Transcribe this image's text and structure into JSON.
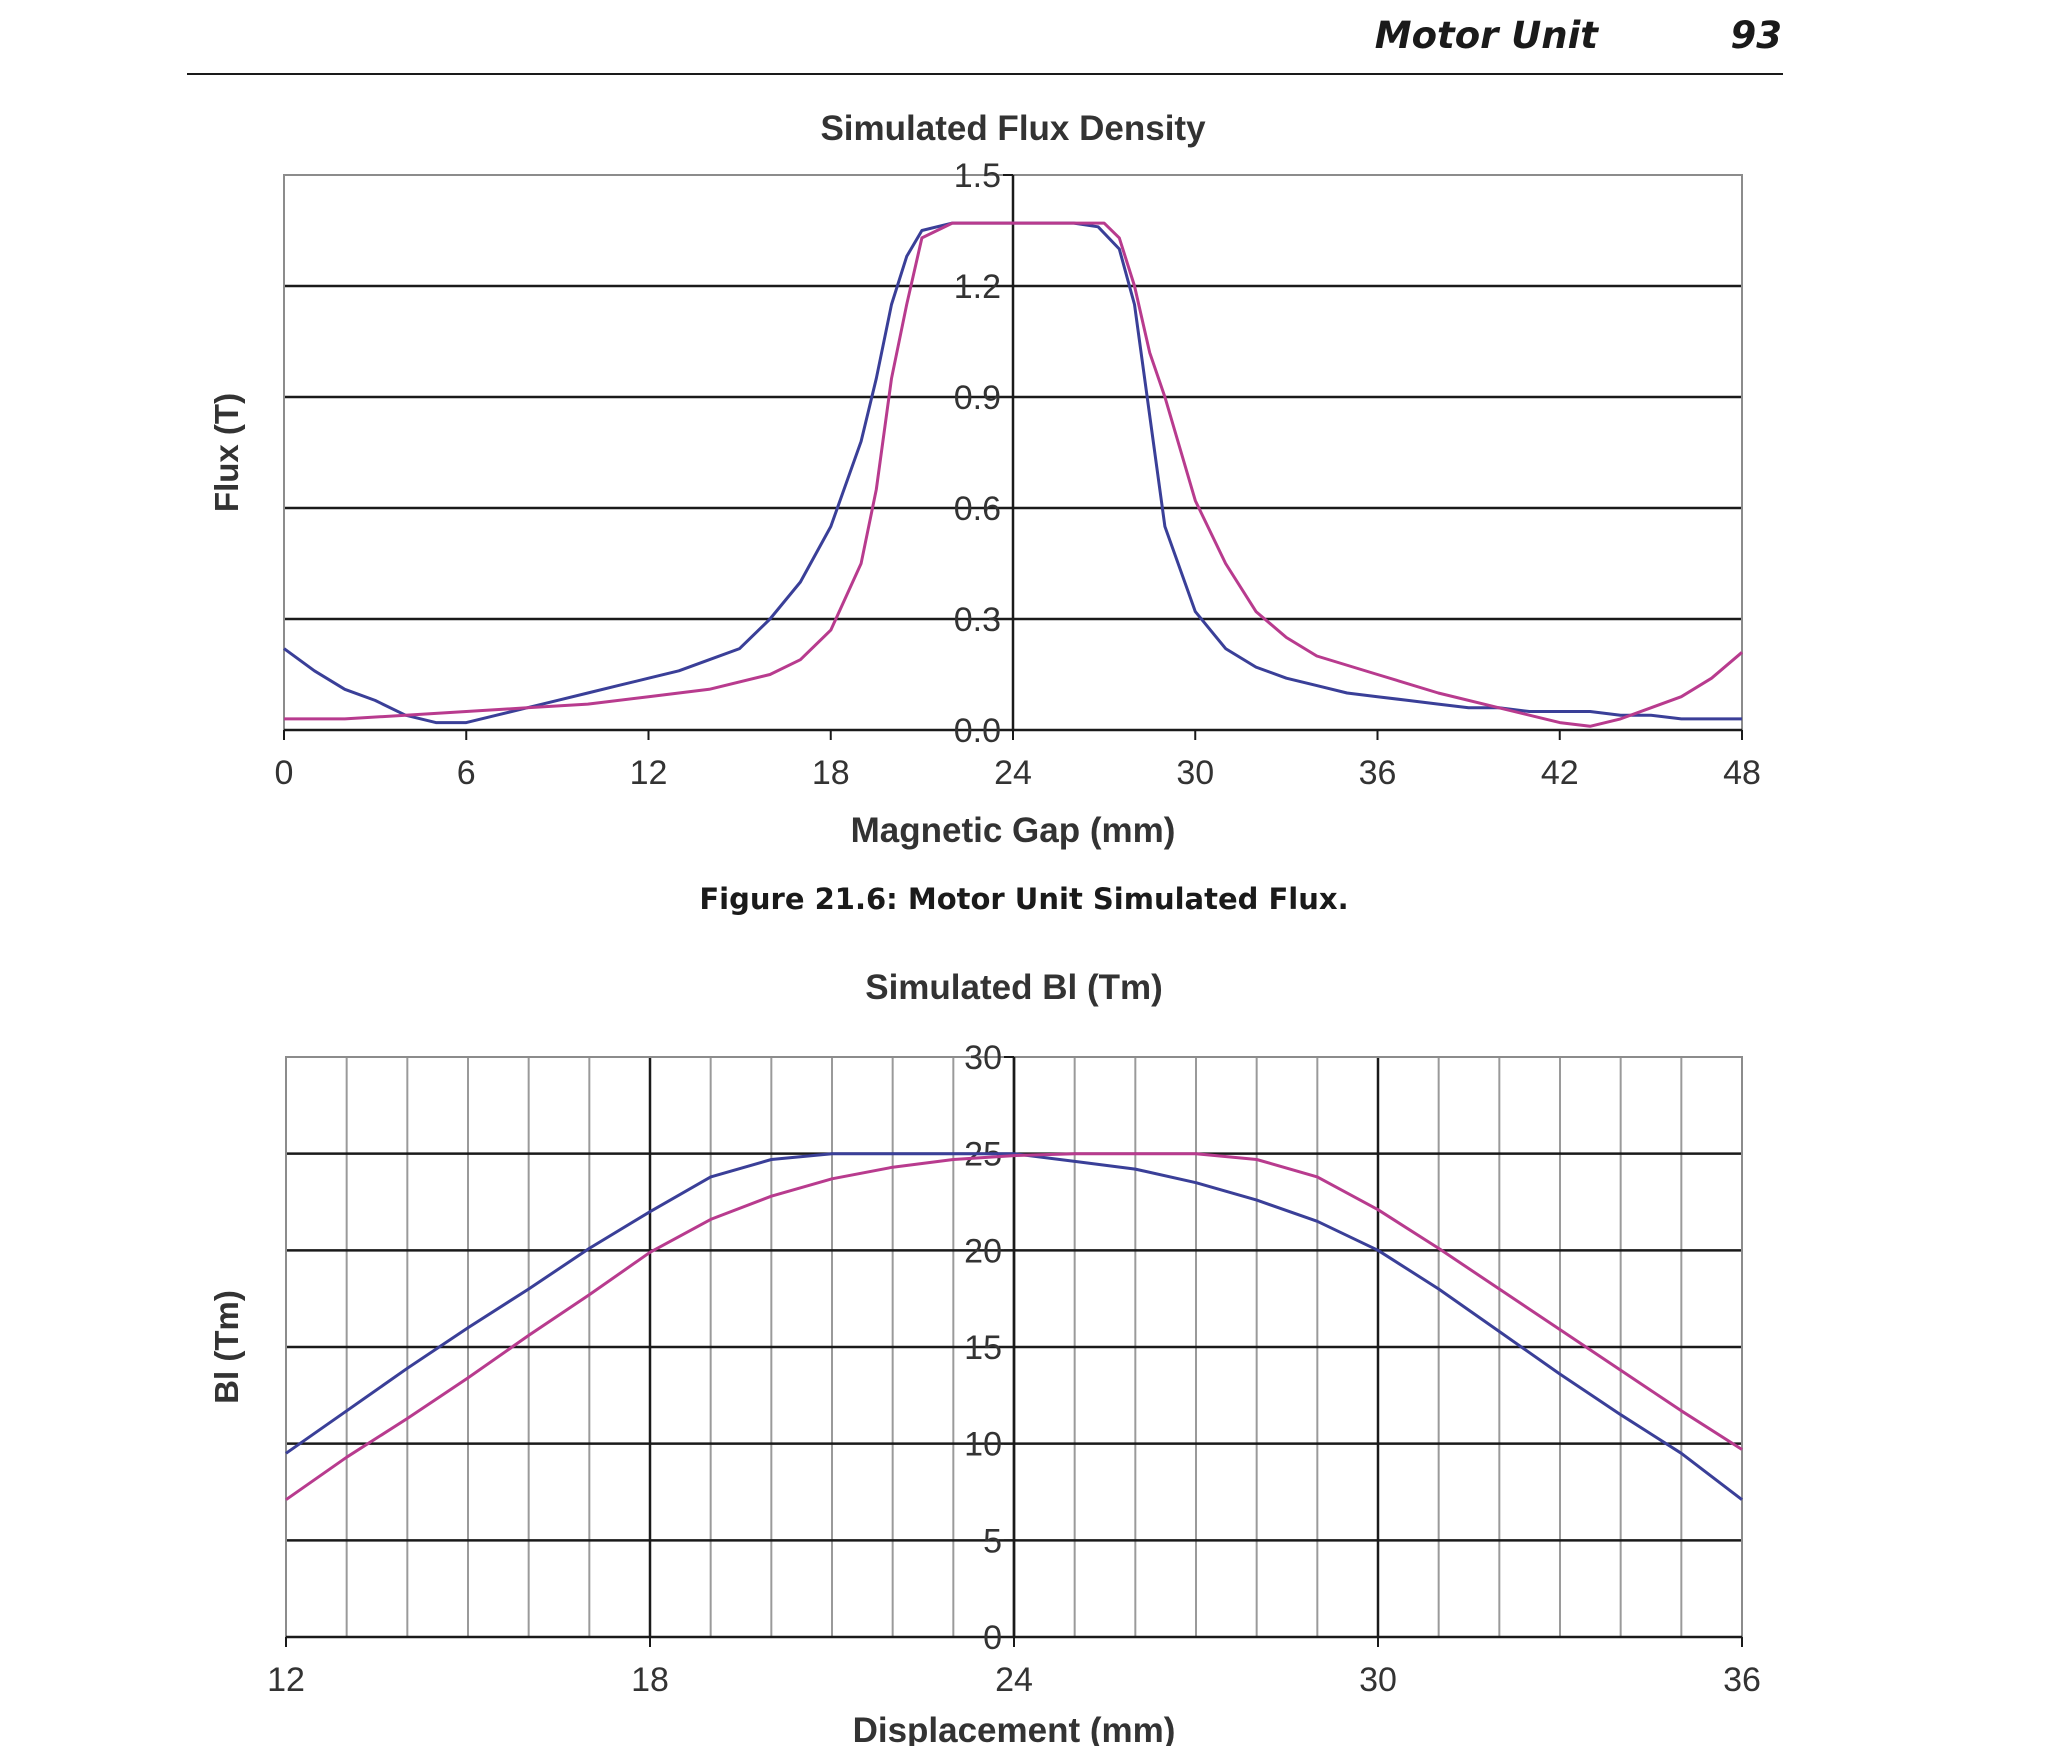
{
  "running_head": {
    "section": "Motor Unit",
    "page": "93"
  },
  "caption": "Figure 21.6:  Motor Unit Simulated Flux.",
  "colors": {
    "series_blue": "#3a3f98",
    "series_magenta": "#b83b8e",
    "grid": "#1a1a1a",
    "minor_grid": "#9a9a9a"
  },
  "chart_data": [
    {
      "type": "line",
      "title": "Simulated Flux Density",
      "xlabel": "Magnetic Gap (mm)",
      "ylabel": "Flux (T)",
      "xlim": [
        0,
        48
      ],
      "ylim": [
        0,
        1.5
      ],
      "x_ticks": [
        "0",
        "6",
        "12",
        "18",
        "24",
        "30",
        "36",
        "42",
        "48"
      ],
      "y_ticks": [
        "0.0",
        "0.3",
        "0.6",
        "0.9",
        "1.2",
        "1.5"
      ],
      "grid": "horizontal",
      "series": [
        {
          "color": "#3a3f98",
          "x": [
            0,
            1,
            2,
            3,
            4,
            5,
            6,
            7,
            8,
            9,
            10,
            11,
            12,
            13,
            14,
            15,
            16,
            17,
            18,
            19,
            19.5,
            20,
            20.5,
            21,
            22,
            23,
            24,
            25,
            26,
            26.8,
            27.5,
            28,
            28.5,
            29,
            30,
            31,
            32,
            33,
            34,
            35,
            36,
            37,
            38,
            39,
            40,
            41,
            42,
            43,
            44,
            45,
            46,
            47,
            48
          ],
          "y": [
            0.22,
            0.16,
            0.11,
            0.08,
            0.04,
            0.02,
            0.02,
            0.04,
            0.06,
            0.08,
            0.1,
            0.12,
            0.14,
            0.16,
            0.19,
            0.22,
            0.3,
            0.4,
            0.55,
            0.78,
            0.95,
            1.15,
            1.28,
            1.35,
            1.37,
            1.37,
            1.37,
            1.37,
            1.37,
            1.36,
            1.3,
            1.15,
            0.85,
            0.55,
            0.32,
            0.22,
            0.17,
            0.14,
            0.12,
            0.1,
            0.09,
            0.08,
            0.07,
            0.06,
            0.06,
            0.05,
            0.05,
            0.05,
            0.04,
            0.04,
            0.03,
            0.03,
            0.03
          ]
        },
        {
          "color": "#b83b8e",
          "x": [
            0,
            2,
            4,
            6,
            8,
            10,
            12,
            14,
            16,
            17,
            18,
            19,
            19.5,
            20,
            20.5,
            21,
            22,
            23,
            24,
            25,
            26,
            27,
            27.5,
            28,
            28.5,
            29,
            30,
            31,
            32,
            33,
            34,
            36,
            38,
            40,
            42,
            43,
            44,
            45,
            46,
            47,
            48
          ],
          "y": [
            0.03,
            0.03,
            0.04,
            0.05,
            0.06,
            0.07,
            0.09,
            0.11,
            0.15,
            0.19,
            0.27,
            0.45,
            0.65,
            0.95,
            1.15,
            1.33,
            1.37,
            1.37,
            1.37,
            1.37,
            1.37,
            1.37,
            1.33,
            1.2,
            1.02,
            0.9,
            0.62,
            0.45,
            0.32,
            0.25,
            0.2,
            0.15,
            0.1,
            0.06,
            0.02,
            0.01,
            0.03,
            0.06,
            0.09,
            0.14,
            0.21
          ]
        }
      ]
    },
    {
      "type": "line",
      "title": "Simulated Bl (Tm)",
      "xlabel": "Displacement (mm)",
      "ylabel": "Bl (Tm)",
      "xlim": [
        12,
        36
      ],
      "ylim": [
        0,
        30
      ],
      "x_ticks": [
        "12",
        "18",
        "24",
        "30",
        "36"
      ],
      "y_ticks": [
        "0",
        "5",
        "10",
        "15",
        "20",
        "25",
        "30"
      ],
      "grid": "both",
      "series": [
        {
          "color": "#3a3f98",
          "x": [
            12,
            13,
            14,
            15,
            16,
            17,
            18,
            19,
            20,
            21,
            22,
            23,
            24,
            25,
            26,
            27,
            28,
            29,
            30,
            31,
            32,
            33,
            34,
            35,
            36
          ],
          "y": [
            9.5,
            11.7,
            13.9,
            16.0,
            18.0,
            20.1,
            22.0,
            23.8,
            24.7,
            25.0,
            25.0,
            25.0,
            25.0,
            24.6,
            24.2,
            23.5,
            22.6,
            21.5,
            20.0,
            18.0,
            15.8,
            13.6,
            11.5,
            9.5,
            7.1
          ]
        },
        {
          "color": "#b83b8e",
          "x": [
            12,
            13,
            14,
            15,
            16,
            17,
            18,
            19,
            20,
            21,
            22,
            23,
            24,
            25,
            26,
            27,
            28,
            29,
            30,
            31,
            32,
            33,
            34,
            35,
            36
          ],
          "y": [
            7.1,
            9.3,
            11.3,
            13.4,
            15.6,
            17.7,
            19.9,
            21.6,
            22.8,
            23.7,
            24.3,
            24.7,
            24.9,
            25.0,
            25.0,
            25.0,
            24.7,
            23.8,
            22.1,
            20.1,
            18.0,
            15.9,
            13.8,
            11.7,
            9.7
          ]
        }
      ]
    }
  ]
}
